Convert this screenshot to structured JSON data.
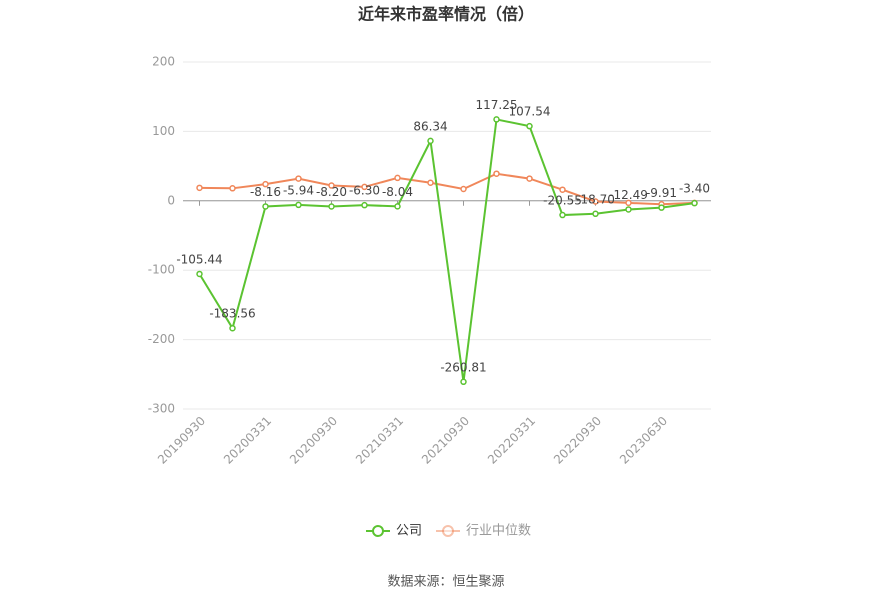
{
  "chart_data": {
    "type": "line",
    "title": "近年来市盈率情况（倍）",
    "categories": [
      "20190930",
      null,
      "20200331",
      null,
      "20200930",
      null,
      "20210331",
      null,
      "20210930",
      null,
      "20220331",
      null,
      "20220930",
      null,
      "20230630",
      null
    ],
    "series": [
      {
        "name": "公司",
        "color": "#5bc331",
        "values": [
          -105.44,
          -183.56,
          -8.16,
          -5.94,
          -8.2,
          -6.3,
          -8.04,
          86.34,
          -260.81,
          117.25,
          107.54,
          -20.55,
          -18.7,
          -12.49,
          -9.91,
          -3.4
        ],
        "value_labels": [
          "-105.44",
          "-183.56",
          "-8.16",
          "-5.94",
          "-8.20",
          "-6.30",
          "-8.04",
          "86.34",
          "-260.81",
          "117.25",
          "107.54",
          "-20.55",
          "-18.70",
          "-12.49",
          "-9.91",
          "-3.40"
        ]
      },
      {
        "name": "行业中位数",
        "color": "#f0875a",
        "values": [
          18.7,
          18,
          24,
          32,
          22,
          20,
          33,
          26,
          17,
          39,
          32,
          16,
          -1,
          -3,
          -5,
          -3
        ]
      }
    ],
    "ylim": [
      -300,
      200
    ],
    "yticks": [
      -300,
      -200,
      -100,
      0,
      100,
      200
    ],
    "grid": true,
    "source": "数据来源：恒生聚源"
  }
}
